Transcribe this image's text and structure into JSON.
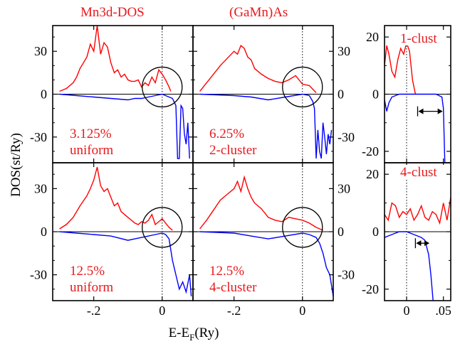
{
  "chart_data": [
    {
      "type": "line",
      "panel": "top-left",
      "title": "Mn3d-DOS",
      "annotation": [
        "3.125%",
        "uniform"
      ],
      "xlim": [
        -0.32,
        0.09
      ],
      "ylim": [
        -48,
        48
      ],
      "yticks": [
        -30,
        0,
        30
      ],
      "yticks_side": "left",
      "xlabel": "",
      "ylabel": "",
      "markers": [
        {
          "type": "circle",
          "x": 0.0,
          "y": 5
        }
      ],
      "series": [
        {
          "name": "",
          "color": "#ff0000",
          "x": [
            -0.3,
            -0.28,
            -0.26,
            -0.25,
            -0.24,
            -0.23,
            -0.22,
            -0.21,
            -0.2,
            -0.19,
            -0.18,
            -0.17,
            -0.16,
            -0.15,
            -0.14,
            -0.13,
            -0.12,
            -0.11,
            -0.1,
            -0.09,
            -0.08,
            -0.07,
            -0.06,
            -0.05,
            -0.04,
            -0.03,
            -0.02,
            -0.01,
            0.0,
            0.01,
            0.02,
            0.025
          ],
          "y": [
            2,
            4,
            8,
            12,
            18,
            22,
            26,
            35,
            30,
            48,
            28,
            36,
            33,
            22,
            15,
            17,
            12,
            14,
            10,
            9,
            9,
            10,
            5,
            8,
            6,
            12,
            8,
            17,
            14,
            10,
            5,
            2
          ]
        },
        {
          "name": "",
          "color": "#0000ff",
          "x": [
            -0.3,
            -0.25,
            -0.2,
            -0.15,
            -0.1,
            -0.08,
            -0.06,
            -0.04,
            -0.02,
            0.0,
            0.02,
            0.03,
            0.04,
            0.045,
            0.05,
            0.055,
            0.06,
            0.065,
            0.07,
            0.075,
            0.08
          ],
          "y": [
            0,
            -1,
            -2,
            -3,
            -4,
            -3,
            -3,
            -2,
            -1,
            0,
            -2,
            -3,
            -8,
            -45,
            -45,
            -8,
            -10,
            -28,
            -35,
            -20,
            -45
          ]
        }
      ]
    },
    {
      "type": "line",
      "panel": "top-right",
      "title": "(GaMn)As",
      "annotation": [
        "6.25%",
        "2-cluster"
      ],
      "xlim": [
        -0.32,
        0.09
      ],
      "ylim": [
        -48,
        48
      ],
      "yticks": [
        -30,
        0,
        30
      ],
      "yticks_side": "right",
      "xlabel": "",
      "ylabel": "",
      "markers": [
        {
          "type": "circle",
          "x": 0.0,
          "y": 5
        }
      ],
      "series": [
        {
          "name": "",
          "color": "#ff0000",
          "x": [
            -0.3,
            -0.28,
            -0.26,
            -0.24,
            -0.22,
            -0.2,
            -0.19,
            -0.18,
            -0.17,
            -0.16,
            -0.15,
            -0.14,
            -0.12,
            -0.1,
            -0.08,
            -0.06,
            -0.04,
            -0.02,
            0.0,
            0.02,
            0.04
          ],
          "y": [
            2,
            8,
            14,
            20,
            25,
            30,
            28,
            34,
            32,
            26,
            24,
            18,
            14,
            11,
            9,
            8,
            10,
            13,
            7,
            6,
            1
          ]
        },
        {
          "name": "",
          "color": "#0000ff",
          "x": [
            -0.3,
            -0.2,
            -0.15,
            -0.1,
            -0.05,
            0.0,
            0.02,
            0.03,
            0.035,
            0.04,
            0.045,
            0.05,
            0.055,
            0.06,
            0.065,
            0.07,
            0.075,
            0.08,
            0.085
          ],
          "y": [
            0,
            -1,
            -2,
            -4,
            -2,
            0,
            -1,
            -5,
            -10,
            -45,
            -25,
            -40,
            -45,
            -20,
            -30,
            -42,
            -28,
            -35,
            -25
          ]
        }
      ]
    },
    {
      "type": "line",
      "panel": "bottom-left",
      "title": "",
      "annotation": [
        "12.5%",
        "uniform"
      ],
      "xlim": [
        -0.32,
        0.09
      ],
      "ylim": [
        -48,
        48
      ],
      "yticks": [
        -30,
        0,
        30
      ],
      "yticks_side": "left",
      "xticks": [
        -0.2,
        0
      ],
      "xlabel": "",
      "ylabel": "",
      "markers": [
        {
          "type": "circle",
          "x": 0.0,
          "y": 3
        }
      ],
      "series": [
        {
          "name": "",
          "color": "#ff0000",
          "x": [
            -0.3,
            -0.28,
            -0.26,
            -0.24,
            -0.22,
            -0.21,
            -0.2,
            -0.19,
            -0.18,
            -0.17,
            -0.16,
            -0.15,
            -0.14,
            -0.13,
            -0.12,
            -0.11,
            -0.1,
            -0.09,
            -0.08,
            -0.07,
            -0.06,
            -0.05,
            -0.04,
            -0.03,
            -0.02,
            -0.01,
            0.0,
            0.01,
            0.02,
            0.03
          ],
          "y": [
            2,
            5,
            10,
            18,
            25,
            30,
            36,
            45,
            32,
            28,
            30,
            24,
            18,
            20,
            14,
            12,
            10,
            8,
            6,
            5,
            7,
            6,
            8,
            12,
            5,
            7,
            9,
            6,
            3,
            1
          ]
        },
        {
          "name": "",
          "color": "#0000ff",
          "x": [
            -0.3,
            -0.25,
            -0.2,
            -0.15,
            -0.1,
            -0.08,
            -0.06,
            -0.04,
            -0.02,
            0.0,
            0.01,
            0.02,
            0.03,
            0.04,
            0.05,
            0.06,
            0.07,
            0.08,
            0.085
          ],
          "y": [
            0,
            -1,
            -2,
            -3,
            -6,
            -5,
            -4,
            -3,
            -2,
            -1,
            -2,
            -5,
            -20,
            -30,
            -40,
            -35,
            -42,
            -30,
            -45
          ]
        }
      ]
    },
    {
      "type": "line",
      "panel": "bottom-right",
      "title": "",
      "annotation": [
        "12.5%",
        "4-cluster"
      ],
      "xlim": [
        -0.32,
        0.09
      ],
      "ylim": [
        -48,
        48
      ],
      "yticks": [
        -30,
        0,
        30
      ],
      "yticks_side": "right",
      "xticks": [
        -0.2,
        0
      ],
      "xlabel": "",
      "ylabel": "",
      "markers": [
        {
          "type": "circle",
          "x": 0.0,
          "y": 3
        }
      ],
      "series": [
        {
          "name": "",
          "color": "#ff0000",
          "x": [
            -0.3,
            -0.28,
            -0.26,
            -0.24,
            -0.22,
            -0.2,
            -0.19,
            -0.18,
            -0.17,
            -0.16,
            -0.15,
            -0.14,
            -0.12,
            -0.1,
            -0.08,
            -0.06,
            -0.04,
            -0.02,
            0.0,
            0.02,
            0.04,
            0.06
          ],
          "y": [
            2,
            8,
            15,
            22,
            26,
            30,
            35,
            28,
            38,
            30,
            24,
            20,
            16,
            10,
            8,
            7,
            10,
            9,
            8,
            6,
            3,
            1
          ]
        },
        {
          "name": "",
          "color": "#0000ff",
          "x": [
            -0.3,
            -0.2,
            -0.15,
            -0.1,
            -0.05,
            0.0,
            0.02,
            0.04,
            0.05,
            0.06,
            0.07,
            0.08,
            0.09
          ],
          "y": [
            0,
            -1,
            -3,
            -5,
            -3,
            -1,
            -2,
            -4,
            -8,
            -15,
            -25,
            -30,
            -45
          ]
        }
      ]
    },
    {
      "type": "line",
      "panel": "inset-top",
      "title": "",
      "annotation": [
        "1-clust"
      ],
      "xlim": [
        -0.03,
        0.06
      ],
      "ylim": [
        -24,
        24
      ],
      "yticks": [
        -20,
        0,
        20
      ],
      "yticks_side": "left",
      "xlabel": "",
      "ylabel": "",
      "markers": [
        {
          "type": "double-arrow",
          "x": [
            0.015,
            0.05
          ],
          "y": -6
        }
      ],
      "series": [
        {
          "name": "",
          "color": "#ff0000",
          "x": [
            -0.03,
            -0.027,
            -0.024,
            -0.02,
            -0.016,
            -0.012,
            -0.008,
            -0.004,
            0.0,
            0.004,
            0.008,
            0.012
          ],
          "y": [
            10,
            17,
            14,
            8,
            6,
            12,
            16,
            14,
            18,
            15,
            5,
            0
          ]
        },
        {
          "name": "",
          "color": "#0000ff",
          "x": [
            -0.03,
            -0.027,
            -0.024,
            -0.02,
            -0.01,
            0.0,
            0.01,
            0.04,
            0.048,
            0.05,
            0.052
          ],
          "y": [
            -2,
            -6,
            -3,
            -1,
            0,
            0,
            0,
            0,
            -1,
            -5,
            -24
          ]
        }
      ]
    },
    {
      "type": "line",
      "panel": "inset-bottom",
      "title": "",
      "annotation": [
        "4-clust"
      ],
      "xlim": [
        -0.03,
        0.06
      ],
      "ylim": [
        -24,
        24
      ],
      "yticks": [
        -20,
        0,
        20
      ],
      "yticks_side": "left",
      "xticks": [
        0,
        0.05
      ],
      "xlabel": "",
      "ylabel": "",
      "markers": [
        {
          "type": "double-arrow",
          "x": [
            0.012,
            0.032
          ],
          "y": -4
        }
      ],
      "series": [
        {
          "name": "",
          "color": "#ff0000",
          "x": [
            -0.03,
            -0.025,
            -0.02,
            -0.015,
            -0.01,
            -0.005,
            0.0,
            0.005,
            0.01,
            0.015,
            0.02,
            0.025,
            0.03,
            0.035,
            0.04,
            0.045,
            0.05,
            0.055,
            0.06
          ],
          "y": [
            6,
            4,
            10,
            9,
            5,
            7,
            6,
            8,
            4,
            6,
            9,
            5,
            4,
            7,
            6,
            3,
            10,
            4,
            12
          ]
        },
        {
          "name": "",
          "color": "#0000ff",
          "x": [
            -0.03,
            -0.02,
            -0.01,
            0.0,
            0.01,
            0.02,
            0.025,
            0.03,
            0.033,
            0.036
          ],
          "y": [
            -2,
            -1,
            0,
            0,
            -1,
            -2,
            -3,
            -8,
            -15,
            -24
          ]
        }
      ]
    }
  ],
  "figure": {
    "ylabel": "DOS(st/Ry)",
    "xlabel_main": "E-E",
    "xlabel_sub": "F",
    "xlabel_tail": "(Ry)",
    "colors": {
      "up": "#ff0000",
      "down": "#0000ff",
      "axis": "#000000",
      "text_red": "#e8191c"
    }
  }
}
